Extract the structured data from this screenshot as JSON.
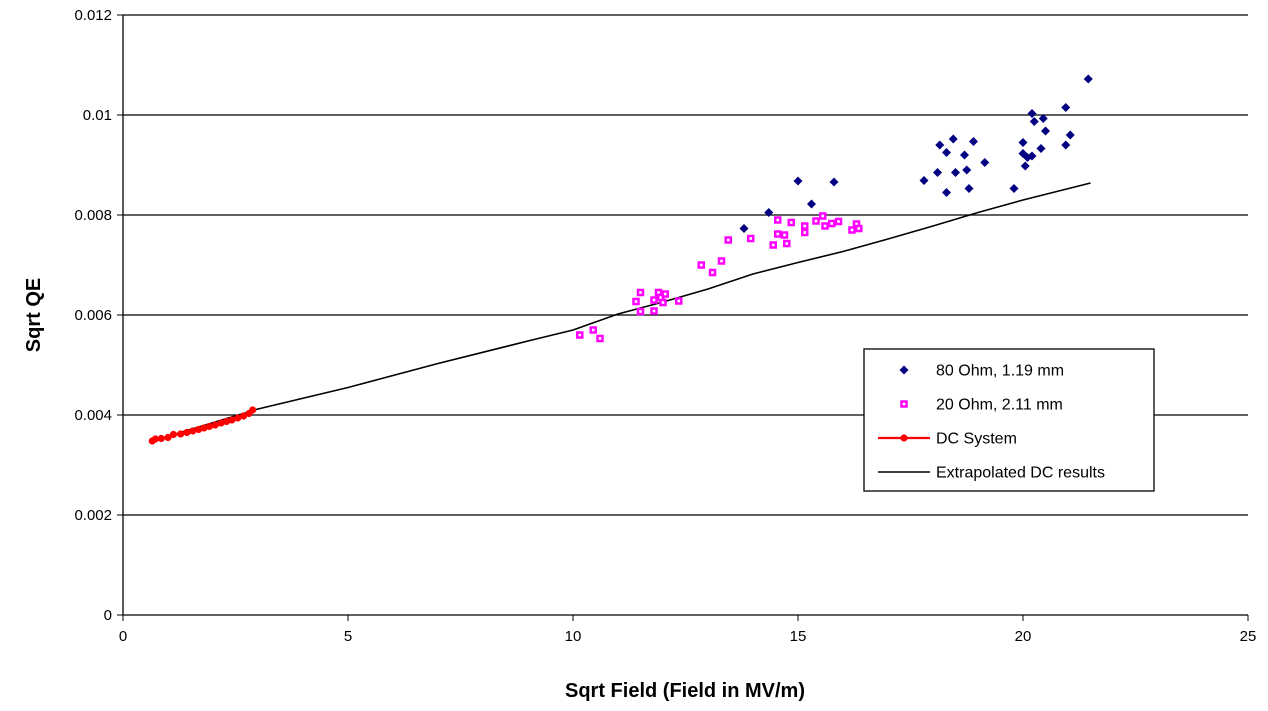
{
  "chart_data": {
    "type": "scatter",
    "title": "",
    "xlabel": "Sqrt Field (Field in MV/m)",
    "ylabel": "Sqrt QE",
    "xlim": [
      0,
      25
    ],
    "ylim": [
      0,
      0.012
    ],
    "x_ticks": [
      "0",
      "5",
      "10",
      "15",
      "20",
      "25"
    ],
    "y_ticks": [
      "0",
      "0.002",
      "0.004",
      "0.006",
      "0.008",
      "0.01",
      "0.012"
    ],
    "grid": "horizontal major gridlines",
    "legend_placement": "right, inside plot",
    "series": [
      {
        "name": "80 Ohm, 1.19 mm",
        "kind": "markers",
        "marker": "diamond",
        "color": "#000080",
        "points": [
          [
            13.8,
            0.00773
          ],
          [
            14.35,
            0.00805
          ],
          [
            15.0,
            0.00868
          ],
          [
            15.3,
            0.00822
          ],
          [
            15.8,
            0.00866
          ],
          [
            17.8,
            0.00869
          ],
          [
            18.1,
            0.00885
          ],
          [
            18.15,
            0.0094
          ],
          [
            18.3,
            0.00925
          ],
          [
            18.3,
            0.00845
          ],
          [
            18.45,
            0.00952
          ],
          [
            18.5,
            0.00885
          ],
          [
            18.7,
            0.0092
          ],
          [
            18.75,
            0.0089
          ],
          [
            18.8,
            0.00853
          ],
          [
            18.9,
            0.00947
          ],
          [
            19.15,
            0.00905
          ],
          [
            19.8,
            0.00853
          ],
          [
            20.0,
            0.00945
          ],
          [
            20.0,
            0.00923
          ],
          [
            20.05,
            0.00898
          ],
          [
            20.1,
            0.00915
          ],
          [
            20.2,
            0.01003
          ],
          [
            20.2,
            0.00918
          ],
          [
            20.25,
            0.00987
          ],
          [
            20.4,
            0.00933
          ],
          [
            20.45,
            0.00993
          ],
          [
            20.5,
            0.00968
          ],
          [
            20.95,
            0.01015
          ],
          [
            20.95,
            0.0094
          ],
          [
            21.05,
            0.0096
          ],
          [
            21.45,
            0.01072
          ]
        ]
      },
      {
        "name": "20 Ohm, 2.11 mm",
        "kind": "markers",
        "marker": "square",
        "color": "#ff00ff",
        "points": [
          [
            10.15,
            0.0056
          ],
          [
            10.45,
            0.0057
          ],
          [
            10.6,
            0.00553
          ],
          [
            11.4,
            0.00627
          ],
          [
            11.5,
            0.00645
          ],
          [
            11.5,
            0.00607
          ],
          [
            11.8,
            0.0063
          ],
          [
            11.8,
            0.00608
          ],
          [
            11.9,
            0.00645
          ],
          [
            11.95,
            0.00635
          ],
          [
            12.0,
            0.00625
          ],
          [
            12.05,
            0.00642
          ],
          [
            12.35,
            0.00628
          ],
          [
            12.85,
            0.007
          ],
          [
            13.1,
            0.00685
          ],
          [
            13.3,
            0.00708
          ],
          [
            13.45,
            0.0075
          ],
          [
            13.95,
            0.00753
          ],
          [
            14.45,
            0.0074
          ],
          [
            14.55,
            0.0079
          ],
          [
            14.55,
            0.00762
          ],
          [
            14.7,
            0.0076
          ],
          [
            14.75,
            0.00743
          ],
          [
            14.85,
            0.00785
          ],
          [
            15.15,
            0.00778
          ],
          [
            15.15,
            0.00765
          ],
          [
            15.4,
            0.00788
          ],
          [
            15.55,
            0.00798
          ],
          [
            15.6,
            0.00778
          ],
          [
            15.75,
            0.00783
          ],
          [
            15.9,
            0.00787
          ],
          [
            16.2,
            0.0077
          ],
          [
            16.3,
            0.00782
          ],
          [
            16.35,
            0.00773
          ]
        ]
      },
      {
        "name": "DC System",
        "kind": "line-markers",
        "marker": "circle",
        "color": "#ff0000",
        "points": [
          [
            0.65,
            0.00348
          ],
          [
            0.72,
            0.00352
          ],
          [
            0.85,
            0.00353
          ],
          [
            1.0,
            0.00355
          ],
          [
            1.12,
            0.00361
          ],
          [
            1.28,
            0.00362
          ],
          [
            1.42,
            0.00365
          ],
          [
            1.55,
            0.00368
          ],
          [
            1.68,
            0.00371
          ],
          [
            1.8,
            0.00374
          ],
          [
            1.92,
            0.00377
          ],
          [
            2.05,
            0.0038
          ],
          [
            2.18,
            0.00384
          ],
          [
            2.3,
            0.00387
          ],
          [
            2.42,
            0.0039
          ],
          [
            2.55,
            0.00394
          ],
          [
            2.68,
            0.00398
          ],
          [
            2.8,
            0.00403
          ],
          [
            2.88,
            0.0041
          ]
        ]
      },
      {
        "name": "Extrapolated DC results",
        "kind": "line",
        "color": "#000000",
        "points": [
          [
            0.65,
            0.00348
          ],
          [
            3.0,
            0.00412
          ],
          [
            5.0,
            0.00455
          ],
          [
            7.0,
            0.00503
          ],
          [
            9.0,
            0.00548
          ],
          [
            10.0,
            0.0057
          ],
          [
            11.0,
            0.00602
          ],
          [
            12.0,
            0.00626
          ],
          [
            13.0,
            0.00652
          ],
          [
            14.0,
            0.00682
          ],
          [
            15.0,
            0.00705
          ],
          [
            16.0,
            0.00727
          ],
          [
            17.0,
            0.00752
          ],
          [
            18.0,
            0.00778
          ],
          [
            19.0,
            0.00805
          ],
          [
            20.0,
            0.0083
          ],
          [
            21.5,
            0.00864
          ]
        ]
      }
    ]
  }
}
